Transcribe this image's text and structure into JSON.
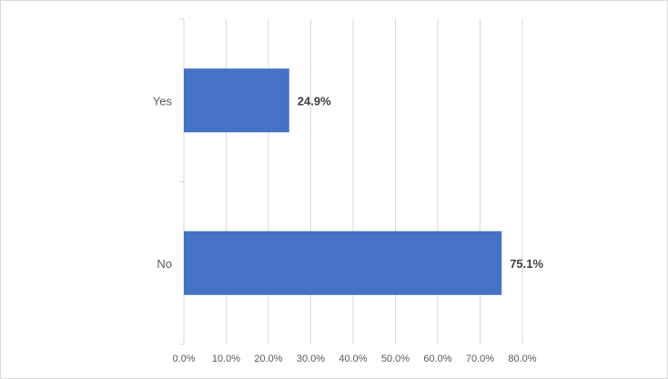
{
  "chart_data": {
    "type": "bar",
    "orientation": "horizontal",
    "categories": [
      "Yes",
      "No"
    ],
    "values": [
      24.9,
      75.1
    ],
    "data_labels": [
      "24.9%",
      "75.1%"
    ],
    "xlim": [
      0,
      80
    ],
    "x_ticks": [
      0,
      10,
      20,
      30,
      40,
      50,
      60,
      70,
      80
    ],
    "x_tick_labels": [
      "0.0%",
      "10.0%",
      "20.0%",
      "30.0%",
      "40.0%",
      "50.0%",
      "60.0%",
      "70.0%",
      "80.0%"
    ],
    "title": "",
    "xlabel": "",
    "ylabel": "",
    "grid": "vertical",
    "legend": "none",
    "bar_color": "#4472c4",
    "grid_color": "#d9d9d9"
  }
}
